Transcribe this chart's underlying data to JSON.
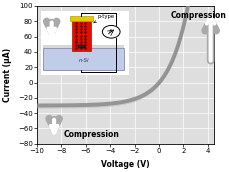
{
  "xlim": [
    -10,
    4.5
  ],
  "ylim": [
    -80,
    100
  ],
  "xticks": [
    -10,
    -8,
    -6,
    -4,
    -2,
    0,
    2,
    4
  ],
  "yticks": [
    -80,
    -60,
    -40,
    -20,
    0,
    20,
    40,
    60,
    80,
    100
  ],
  "xlabel": "Voltage (V)",
  "ylabel": "Current (μA)",
  "bg_color": "#dedede",
  "curve_color": "#888888",
  "compression_upper_text": "Compression",
  "compression_lower_text": "Compression",
  "ptype_label": "p-type",
  "nsi_label": "n-Si",
  "curve_alpha": 0.85
}
